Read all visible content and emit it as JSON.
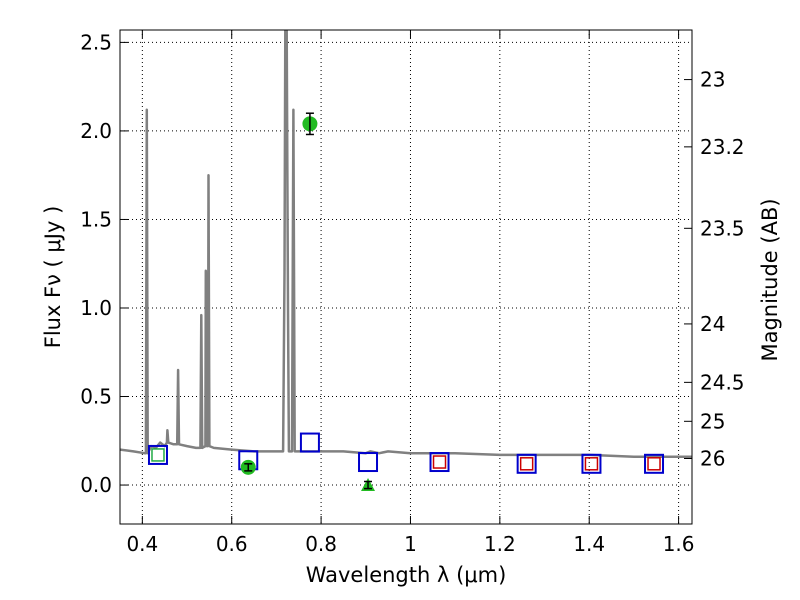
{
  "chart_data": {
    "type": "line",
    "xlabel": "Wavelength  λ (μm)",
    "ylabel": "Flux  Fν  ( μJy )",
    "y2label": "Magnitude (AB)",
    "xlim": [
      0.35,
      1.63
    ],
    "ylim": [
      -0.22,
      2.57
    ],
    "x_ticks": [
      0.4,
      0.6,
      0.8,
      1.0,
      1.2,
      1.4,
      1.6
    ],
    "x_tick_labels": [
      "0.4",
      "0.6",
      "0.8",
      "1",
      "1.2",
      "1.4",
      "1.6"
    ],
    "y_ticks": [
      0.0,
      0.5,
      1.0,
      1.5,
      2.0,
      2.5
    ],
    "y_tick_labels": [
      "0.0",
      "0.5",
      "1.0",
      "1.5",
      "2.0",
      "2.5"
    ],
    "y2_ticks": [
      {
        "label": "23",
        "flux": 2.29
      },
      {
        "label": "23.2",
        "flux": 1.91
      },
      {
        "label": "23.5",
        "flux": 1.45
      },
      {
        "label": "24",
        "flux": 0.91
      },
      {
        "label": "24.5",
        "flux": 0.58
      },
      {
        "label": "25",
        "flux": 0.36
      },
      {
        "label": "26",
        "flux": 0.15
      }
    ],
    "grid": true,
    "grid_style": "dotted",
    "colors": {
      "spectrum": "#808080",
      "model_box": "#0000cc",
      "model_box_inner_green": "#22aa44",
      "model_box_inner_red": "#cc0000",
      "observed": "#22bb22",
      "errorbar": "#000000"
    },
    "series": [
      {
        "kind": "spectrum",
        "points": [
          [
            0.35,
            0.2
          ],
          [
            0.38,
            0.19
          ],
          [
            0.405,
            0.18
          ],
          [
            0.408,
            0.18
          ],
          [
            0.41,
            2.12
          ],
          [
            0.412,
            0.18
          ],
          [
            0.42,
            0.22
          ],
          [
            0.43,
            0.21
          ],
          [
            0.44,
            0.24
          ],
          [
            0.45,
            0.22
          ],
          [
            0.455,
            0.24
          ],
          [
            0.456,
            0.31
          ],
          [
            0.458,
            0.24
          ],
          [
            0.47,
            0.23
          ],
          [
            0.478,
            0.23
          ],
          [
            0.48,
            0.65
          ],
          [
            0.482,
            0.23
          ],
          [
            0.5,
            0.22
          ],
          [
            0.52,
            0.21
          ],
          [
            0.53,
            0.21
          ],
          [
            0.532,
            0.96
          ],
          [
            0.534,
            0.21
          ],
          [
            0.541,
            0.22
          ],
          [
            0.542,
            1.21
          ],
          [
            0.544,
            0.22
          ],
          [
            0.547,
            0.22
          ],
          [
            0.548,
            1.75
          ],
          [
            0.55,
            0.22
          ],
          [
            0.56,
            0.21
          ],
          [
            0.6,
            0.2
          ],
          [
            0.65,
            0.19
          ],
          [
            0.7,
            0.19
          ],
          [
            0.715,
            0.19
          ],
          [
            0.718,
            1.2
          ],
          [
            0.72,
            2.57
          ],
          [
            0.723,
            2.57
          ],
          [
            0.726,
            1.0
          ],
          [
            0.728,
            0.19
          ],
          [
            0.735,
            0.19
          ],
          [
            0.738,
            2.12
          ],
          [
            0.741,
            0.19
          ],
          [
            0.76,
            0.19
          ],
          [
            0.8,
            0.19
          ],
          [
            0.85,
            0.19
          ],
          [
            0.9,
            0.18
          ],
          [
            0.91,
            0.19
          ],
          [
            0.93,
            0.18
          ],
          [
            0.95,
            0.19
          ],
          [
            1.0,
            0.18
          ],
          [
            1.1,
            0.18
          ],
          [
            1.2,
            0.17
          ],
          [
            1.3,
            0.17
          ],
          [
            1.4,
            0.17
          ],
          [
            1.5,
            0.16
          ],
          [
            1.63,
            0.16
          ]
        ]
      },
      {
        "kind": "model_boxes",
        "points": [
          {
            "x": 0.435,
            "y": 0.17,
            "inner": "green"
          },
          {
            "x": 0.637,
            "y": 0.14,
            "inner": "none"
          },
          {
            "x": 0.775,
            "y": 0.24,
            "inner": "none"
          },
          {
            "x": 0.905,
            "y": 0.13,
            "inner": "none"
          },
          {
            "x": 1.065,
            "y": 0.13,
            "inner": "red"
          },
          {
            "x": 1.26,
            "y": 0.12,
            "inner": "red"
          },
          {
            "x": 1.405,
            "y": 0.12,
            "inner": "red"
          },
          {
            "x": 1.545,
            "y": 0.12,
            "inner": "red"
          }
        ]
      },
      {
        "kind": "observed",
        "points": [
          {
            "x": 0.637,
            "y": 0.1,
            "err": 0.02,
            "marker": "circle"
          },
          {
            "x": 0.775,
            "y": 2.04,
            "err": 0.06,
            "marker": "circle"
          },
          {
            "x": 0.905,
            "y": 0.0,
            "err": 0.02,
            "marker": "triangle"
          }
        ]
      }
    ]
  }
}
